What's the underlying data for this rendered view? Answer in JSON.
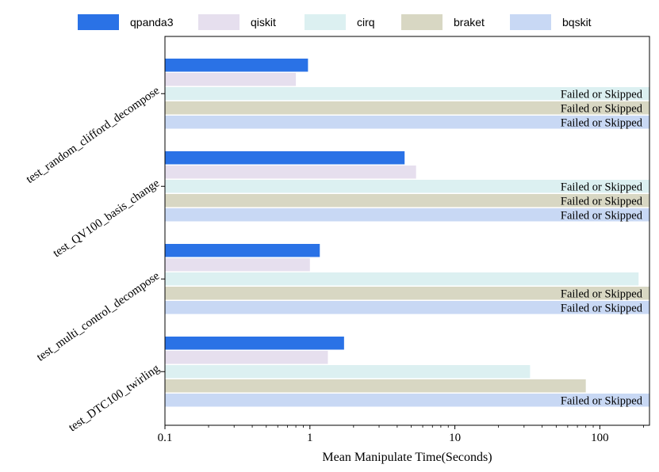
{
  "chart_data": {
    "type": "bar",
    "orientation": "horizontal",
    "xscale": "log",
    "xlabel": "Mean Manipulate Time(Seconds)",
    "ylabel": "",
    "xlim": [
      0.1,
      220
    ],
    "xticks": [
      {
        "value": 0.1,
        "label": "0.1"
      },
      {
        "value": 1,
        "label": "1"
      },
      {
        "value": 10,
        "label": "10"
      },
      {
        "value": 100,
        "label": "100"
      }
    ],
    "legend_position": "top",
    "failed_label": "Failed or Skipped",
    "categories": [
      "test_random_clifford_decompose",
      "test_QV100_basis_change",
      "test_multi_control_decompose",
      "test_DTC100_twirling"
    ],
    "series": [
      {
        "name": "qpanda3",
        "color": "#2a72e6",
        "values": [
          0.97,
          4.5,
          1.17,
          1.72
        ],
        "failed": [
          false,
          false,
          false,
          false
        ]
      },
      {
        "name": "qiskit",
        "color": "#e6dfee",
        "values": [
          0.8,
          5.4,
          1.0,
          1.33
        ],
        "failed": [
          false,
          false,
          false,
          false
        ]
      },
      {
        "name": "cirq",
        "color": "#dcf0f1",
        "values": [
          null,
          null,
          185,
          33
        ],
        "failed": [
          true,
          true,
          false,
          false
        ]
      },
      {
        "name": "braket",
        "color": "#d8d7c3",
        "values": [
          null,
          null,
          null,
          80
        ],
        "failed": [
          true,
          true,
          true,
          false
        ]
      },
      {
        "name": "bqskit",
        "color": "#c8d8f4",
        "values": [
          null,
          null,
          null,
          null
        ],
        "failed": [
          true,
          true,
          true,
          true
        ]
      }
    ]
  }
}
